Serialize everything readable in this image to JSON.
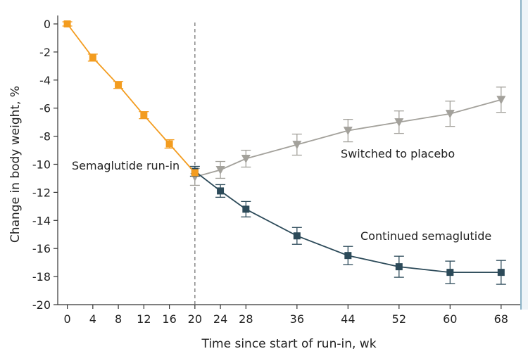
{
  "chart_data": {
    "type": "line",
    "xlabel": "Time since start of run-in, wk",
    "ylabel": "Change in body weight, %",
    "xlim": [
      -1.5,
      71
    ],
    "ylim": [
      -20,
      0
    ],
    "xticks": [
      0,
      4,
      8,
      12,
      16,
      20,
      24,
      28,
      36,
      44,
      52,
      60,
      68
    ],
    "yticks": [
      0,
      -2,
      -4,
      -6,
      -8,
      -10,
      -12,
      -14,
      -16,
      -18,
      -20
    ],
    "ytick_labels": [
      "0",
      "-2",
      "-4",
      "-6",
      "-8",
      "-10",
      "-12",
      "-14",
      "-16",
      "-18",
      "-20"
    ],
    "reference_line_x": 20,
    "series": [
      {
        "key": "runin",
        "label": "Semaglutide run-in",
        "color": "#f39c1f",
        "marker": "square",
        "x": [
          0,
          4,
          8,
          12,
          16,
          20
        ],
        "y": [
          0,
          -2.4,
          -4.35,
          -6.5,
          -8.55,
          -10.6
        ],
        "err": [
          0.15,
          0.25,
          0.25,
          0.25,
          0.3,
          0
        ]
      },
      {
        "key": "placebo",
        "label": "Switched to placebo",
        "color": "#a3a19b",
        "marker": "triangle-down",
        "x": [
          20,
          24,
          28,
          36,
          44,
          52,
          60,
          68
        ],
        "y": [
          -10.9,
          -10.4,
          -9.6,
          -8.6,
          -7.6,
          -7.0,
          -6.4,
          -5.4
        ],
        "err": [
          0.6,
          0.6,
          0.6,
          0.75,
          0.8,
          0.8,
          0.9,
          0.9
        ]
      },
      {
        "key": "semaglutide",
        "label": "Continued semaglutide",
        "color": "#2c4a59",
        "marker": "square",
        "x": [
          20,
          24,
          28,
          36,
          44,
          52,
          60,
          68
        ],
        "y": [
          -10.5,
          -11.9,
          -13.2,
          -15.1,
          -16.5,
          -17.3,
          -17.7,
          -17.7
        ],
        "err": [
          0.35,
          0.45,
          0.55,
          0.6,
          0.65,
          0.75,
          0.8,
          0.85
        ]
      }
    ]
  }
}
